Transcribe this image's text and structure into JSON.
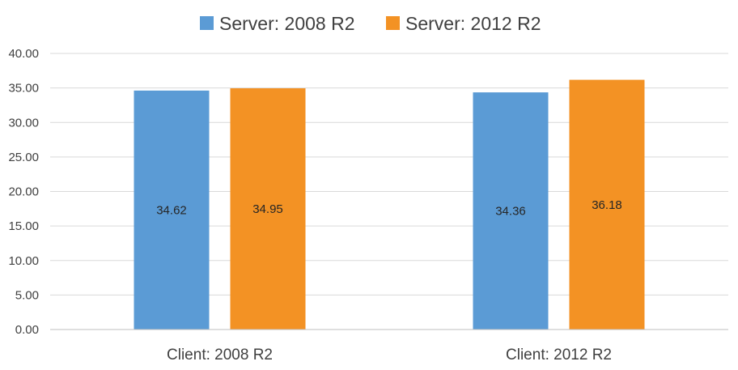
{
  "chart_data": {
    "type": "bar",
    "title": "",
    "xlabel": "",
    "ylabel": "",
    "categories": [
      "Client: 2008 R2",
      "Client: 2012 R2"
    ],
    "series": [
      {
        "name": "Server: 2008 R2",
        "color": "#5b9bd5",
        "values": [
          34.62,
          34.36
        ],
        "labels": [
          "34.62",
          "34.36"
        ]
      },
      {
        "name": "Server: 2012 R2",
        "color": "#f39224",
        "values": [
          34.95,
          36.18
        ],
        "labels": [
          "34.95",
          "36.18"
        ]
      }
    ],
    "ylim": [
      0,
      40
    ],
    "yticks": [
      "0.00",
      "5.00",
      "10.00",
      "15.00",
      "20.00",
      "25.00",
      "30.00",
      "35.00",
      "40.00"
    ],
    "grid": true,
    "legend_position": "top"
  }
}
